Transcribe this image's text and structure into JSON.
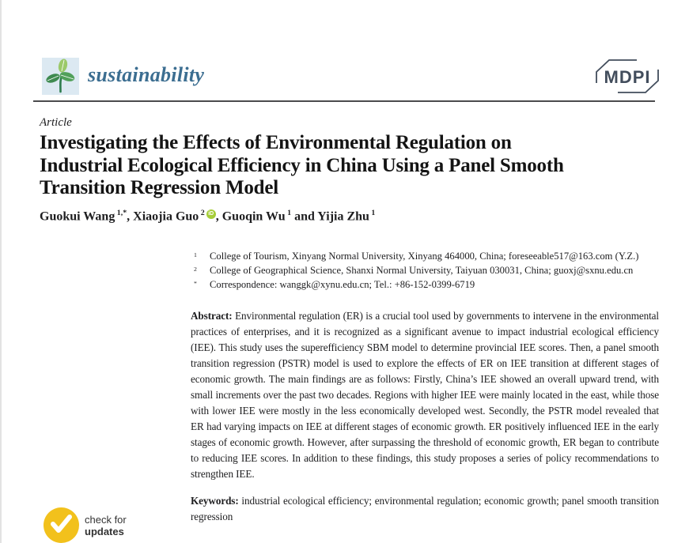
{
  "header": {
    "journal_name": "sustainability",
    "mdpi_label": "MDPI",
    "colors": {
      "journal_text": "#3c6e91",
      "logo_bg": "#dce9f2",
      "mdpi": "#424d5c",
      "rule": "#4b4b4d"
    }
  },
  "article": {
    "type_label": "Article",
    "title_lines": [
      "Investigating the Effects of Environmental Regulation on",
      "Industrial Ecological Efficiency in China Using a Panel Smooth",
      "Transition Regression Model"
    ],
    "authors": [
      {
        "pre": "",
        "name": "Guokui Wang",
        "sup": "1,*",
        "orcid": false
      },
      {
        "pre": ", ",
        "name": "Xiaojia Guo",
        "sup": "2",
        "orcid": true
      },
      {
        "pre": ", ",
        "name": "Guoqin Wu",
        "sup": "1",
        "orcid": false
      },
      {
        "pre": " and ",
        "name": "Yijia Zhu",
        "sup": "1",
        "orcid": false
      }
    ],
    "orcid_icon_label": "iD",
    "orcid_color": "#a6ce39",
    "affiliations": [
      {
        "marker": "1",
        "text": "College of Tourism, Xinyang Normal University, Xinyang 464000, China; foreseeable517@163.com (Y.Z.)"
      },
      {
        "marker": "2",
        "text": "College of Geographical Science, Shanxi Normal University, Taiyuan 030031, China; guoxj@sxnu.edu.cn"
      },
      {
        "marker": "*",
        "text": "Correspondence: wanggk@xynu.edu.cn; Tel.: +86-152-0399-6719"
      }
    ],
    "abstract": {
      "label": "Abstract:",
      "text": "Environmental regulation (ER) is a crucial tool used by governments to intervene in the environmental practices of enterprises, and it is recognized as a significant avenue to impact industrial ecological efficiency (IEE). This study uses the superefficiency SBM model to determine provincial IEE scores. Then, a panel smooth transition regression (PSTR) model is used to explore the effects of ER on IEE transition at different stages of economic growth. The main findings are as follows: Firstly, China’s IEE showed an overall upward trend, with small increments over the past two decades. Regions with higher IEE were mainly located in the east, while those with lower IEE were mostly in the less economically developed west. Secondly, the PSTR model revealed that ER had varying impacts on IEE at different stages of economic growth. ER positively influenced IEE in the early stages of economic growth. However, after surpassing the threshold of economic growth, ER began to contribute to reducing IEE scores. In addition to these findings, this study proposes a series of policy recommendations to strengthen IEE."
    },
    "keywords": {
      "label": "Keywords:",
      "text": "industrial ecological efficiency; environmental regulation; economic growth; panel smooth transition regression"
    }
  },
  "badge": {
    "line1": "check for",
    "line2": "updates",
    "circle_color": "#f2c11c"
  }
}
